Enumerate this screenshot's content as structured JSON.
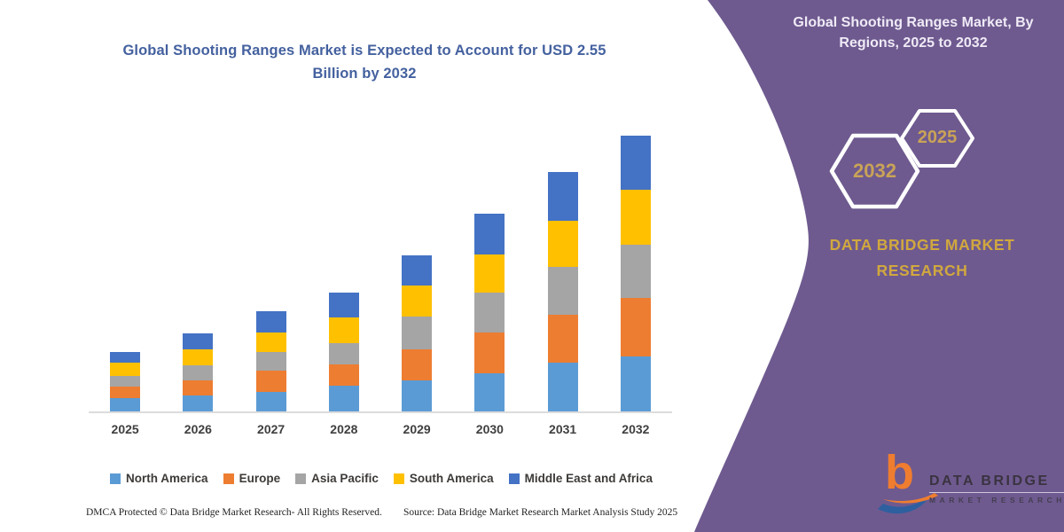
{
  "chart": {
    "title": "Global Shooting Ranges Market is Expected to Account for USD 2.55 Billion by 2032",
    "title_color": "#44619f"
  },
  "chart_data": {
    "type": "bar",
    "stacked": true,
    "title": "Global Shooting Ranges Market is Expected to Account for USD 2.55 Billion by 2032",
    "units": "USD Billion",
    "categories": [
      "2025",
      "2026",
      "2027",
      "2028",
      "2029",
      "2030",
      "2031",
      "2032"
    ],
    "series": [
      {
        "name": "North America",
        "color": "#5B9BD5",
        "values": [
          0.12,
          0.15,
          0.18,
          0.24,
          0.29,
          0.35,
          0.45,
          0.51
        ]
      },
      {
        "name": "Europe",
        "color": "#ED7D31",
        "values": [
          0.11,
          0.14,
          0.2,
          0.2,
          0.29,
          0.38,
          0.44,
          0.54
        ]
      },
      {
        "name": "Asia Pacific",
        "color": "#A5A5A5",
        "values": [
          0.1,
          0.14,
          0.17,
          0.2,
          0.3,
          0.37,
          0.44,
          0.49
        ]
      },
      {
        "name": "South America",
        "color": "#FFC000",
        "values": [
          0.12,
          0.15,
          0.18,
          0.24,
          0.29,
          0.35,
          0.43,
          0.51
        ]
      },
      {
        "name": "Middle East and Africa",
        "color": "#4472C4",
        "values": [
          0.1,
          0.15,
          0.2,
          0.23,
          0.28,
          0.38,
          0.45,
          0.5
        ]
      }
    ],
    "totals": [
      0.55,
      0.73,
      0.93,
      1.11,
      1.45,
      1.83,
      2.21,
      2.55
    ],
    "xlabel": "",
    "ylabel": "",
    "ylim": [
      0,
      2.7
    ],
    "gridlines": false,
    "legend_position": "bottom"
  },
  "side_panel": {
    "bg_color": "#6e5a8f",
    "title": "Global Shooting Ranges Market, By Regions, 2025 to 2032",
    "hexagons": [
      {
        "label": "2032"
      },
      {
        "label": "2025"
      }
    ],
    "brand": "DATA BRIDGE MARKET RESEARCH",
    "accent_color": "#d1a83e"
  },
  "footer": {
    "dmca": "DMCA Protected © Data Bridge Market Research-  All Rights Reserved.",
    "source": "Source: Data Bridge Market Research  Market Analysis Study 2025"
  },
  "logo": {
    "name": "DATA BRIDGE",
    "sub": "MARKET RESEARCH"
  }
}
